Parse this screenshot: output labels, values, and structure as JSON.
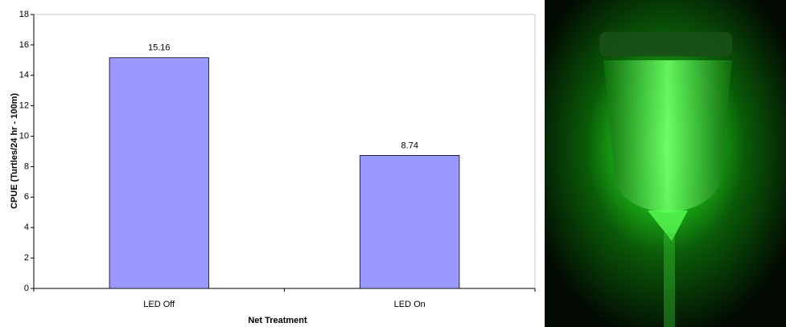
{
  "chart_data": {
    "type": "bar",
    "categories": [
      "LED Off",
      "LED On"
    ],
    "values": [
      15.16,
      8.74
    ],
    "color": "#9999ff",
    "x_label": "Net Treatment",
    "y_label": "CPUE (Turtles/24 hr - 100m)",
    "ylim": [
      0,
      18
    ],
    "yticks": [
      0,
      2,
      4,
      6,
      8,
      10,
      12,
      14,
      16,
      18
    ],
    "grid": false
  }
}
